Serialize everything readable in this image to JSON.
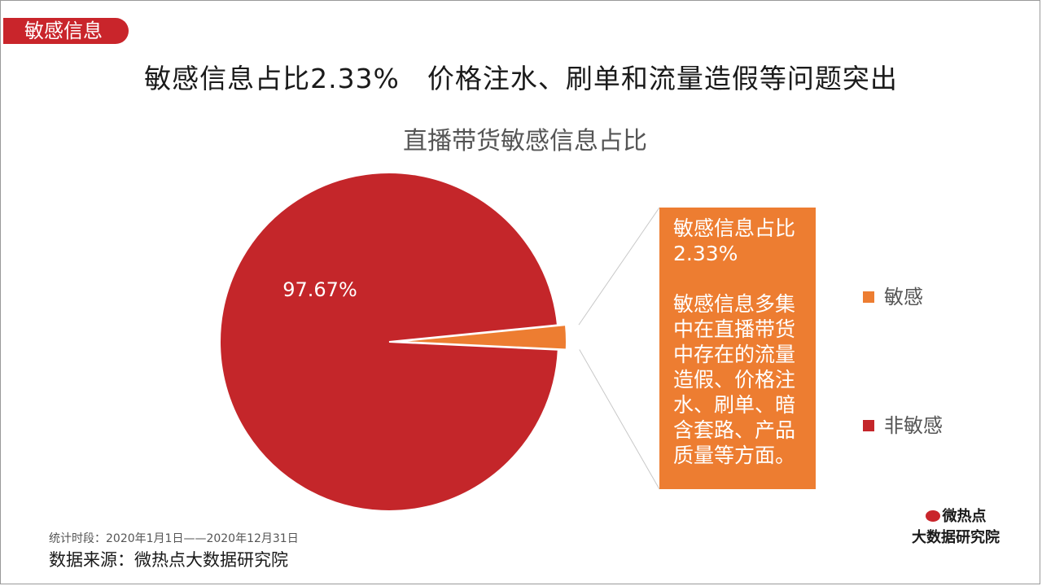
{
  "tag": "敏感信息",
  "headline": "敏感信息占比2.33%　价格注水、刷单和流量造假等问题突出",
  "chart_data": {
    "type": "pie",
    "title": "直播带货敏感信息占比",
    "slices": [
      {
        "name": "敏感",
        "value": 2.33,
        "label": "",
        "color": "#ed7d31"
      },
      {
        "name": "非敏感",
        "value": 97.67,
        "label": "97.67%",
        "color": "#c4262a"
      }
    ],
    "legend_position": "right"
  },
  "callout": {
    "line1": "敏感信息占比",
    "line2": "2.33%",
    "body": [
      "敏感信息多集",
      "中在直播带货",
      "中存在的流量",
      "造假、价格注",
      "水、刷单、暗",
      "含套路、产品",
      "质量等方面。"
    ]
  },
  "footer": {
    "period": "统计时段：2020年1月1日——2020年12月31日",
    "source": "数据来源：微热点大数据研究院"
  },
  "logo": {
    "top": "微热点",
    "bottom": "大数据研究院"
  }
}
